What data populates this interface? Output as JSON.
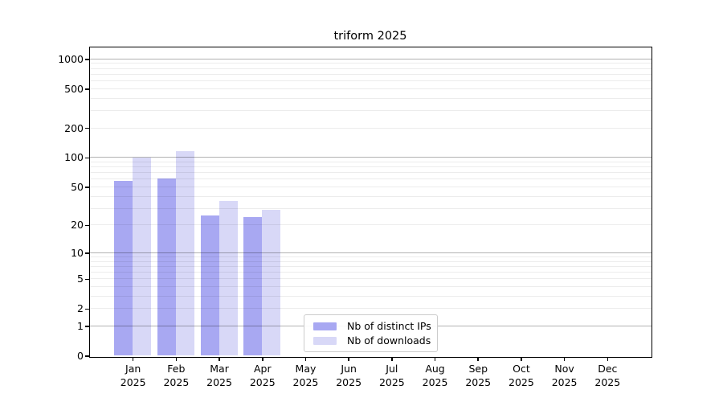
{
  "title": "triform 2025",
  "chart_data": {
    "type": "bar",
    "title": "triform 2025",
    "categories": [
      "Jan 2025",
      "Feb 2025",
      "Mar 2025",
      "Apr 2025",
      "May 2025",
      "Jun 2025",
      "Jul 2025",
      "Aug 2025",
      "Sep 2025",
      "Oct 2025",
      "Nov 2025",
      "Dec 2025"
    ],
    "series": [
      {
        "name": "Nb of distinct IPs",
        "color": "#a8a8f2",
        "values": [
          58,
          61,
          25,
          24,
          0,
          0,
          0,
          0,
          0,
          0,
          0,
          0
        ]
      },
      {
        "name": "Nb of downloads",
        "color": "#d8d8f7",
        "values": [
          100,
          117,
          36,
          29,
          0,
          0,
          0,
          0,
          0,
          0,
          0,
          0
        ]
      }
    ],
    "y_axis": {
      "scale": "log1p",
      "ylim": [
        0,
        1320
      ],
      "ticks": [
        {
          "value": 0,
          "label": "0"
        },
        {
          "value": 1,
          "label": "1"
        },
        {
          "value": 2,
          "label": "2"
        },
        {
          "value": 5,
          "label": "5"
        },
        {
          "value": 10,
          "label": "10"
        },
        {
          "value": 20,
          "label": "20"
        },
        {
          "value": 50,
          "label": "50"
        },
        {
          "value": 100,
          "label": "100"
        },
        {
          "value": 200,
          "label": "200"
        },
        {
          "value": 500,
          "label": "500"
        },
        {
          "value": 1000,
          "label": "1000"
        }
      ],
      "major_gridlines": [
        1,
        10,
        100,
        1000
      ],
      "minor_gridlines": [
        2,
        3,
        4,
        5,
        6,
        7,
        8,
        9,
        20,
        30,
        40,
        50,
        60,
        70,
        80,
        90,
        200,
        300,
        400,
        500,
        600,
        700,
        800,
        900
      ]
    },
    "x_year_label": "2025",
    "legend": {
      "position": "lower center"
    },
    "grid": true,
    "colors": {
      "major_grid": "#b3b3b3",
      "minor_grid": "#ececec",
      "axis": "#000000",
      "background": "#ffffff"
    }
  }
}
